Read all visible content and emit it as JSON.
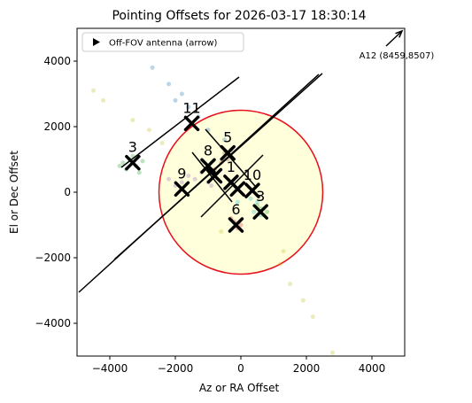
{
  "chart_data": {
    "type": "scatter",
    "title": "Pointing Offsets for 2026-03-17 18:30:14",
    "xlabel": "Az or RA Offset",
    "ylabel": "El or Dec Offset",
    "xlim": [
      -5000,
      5000
    ],
    "ylim": [
      -5000,
      5000
    ],
    "xticks": [
      {
        "value": -4000,
        "label": "−4000"
      },
      {
        "value": -2000,
        "label": "−2000"
      },
      0,
      2000,
      4000
    ],
    "yticks": [
      {
        "value": -4000,
        "label": "−4000"
      },
      {
        "value": -2000,
        "label": "−2000"
      },
      0,
      2000,
      4000
    ],
    "circle": {
      "x": 0,
      "y": 0,
      "r": 2500,
      "color": "#e8101a",
      "fill": "#ffffdc"
    },
    "series": [
      {
        "color": "#1f77b4",
        "x": [
          -2700,
          -2200,
          -1800,
          -1600,
          -1300,
          -2000,
          -1000,
          -500
        ],
        "y": [
          3800,
          3300,
          3000,
          2600,
          2300,
          2800,
          1900,
          1600
        ]
      },
      {
        "color": "#2ca02c",
        "x": [
          -3600,
          -3400,
          -3200,
          -3500,
          -3300,
          -3100,
          -3700,
          -3000,
          600,
          700,
          500,
          800
        ],
        "y": [
          900,
          1000,
          800,
          700,
          1100,
          600,
          800,
          950,
          -500,
          -700,
          -400,
          -600
        ]
      },
      {
        "color": "#9467bd",
        "x": [
          -1800,
          -1600,
          -2000,
          -1400,
          -1200,
          -1000,
          -2200,
          -900
        ],
        "y": [
          300,
          500,
          200,
          400,
          600,
          300,
          400,
          200
        ]
      },
      {
        "color": "#bcbd22",
        "x": [
          -4500,
          -4200,
          -3300,
          -2800,
          -2400,
          1200,
          1500,
          1900,
          2200,
          2800,
          -600,
          1300
        ],
        "y": [
          3100,
          2800,
          2200,
          1900,
          1500,
          -2200,
          -2800,
          -3300,
          -3800,
          -4900,
          -1200,
          -1800
        ]
      },
      {
        "color": "#d62728",
        "x": [
          -200,
          -100,
          -300,
          0,
          -800,
          -600
        ],
        "y": [
          -900,
          -1100,
          -800,
          -1000,
          700,
          900
        ]
      },
      {
        "color": "#17becf",
        "x": [
          500,
          700,
          300,
          600,
          400,
          -100
        ],
        "y": [
          -300,
          -500,
          -200,
          -700,
          -600,
          -300
        ]
      },
      {
        "color": "#8c564b",
        "x": [
          -500,
          -300,
          -400
        ],
        "y": [
          1200,
          1300,
          1000
        ]
      }
    ],
    "markers": {
      "color": "#000000",
      "x": [
        -1500,
        -400,
        -3300,
        -1000,
        -1800,
        -800,
        -300,
        -100,
        350,
        600,
        -150
      ],
      "y": [
        2100,
        1200,
        900,
        800,
        100,
        500,
        300,
        100,
        50,
        -600,
        -1000
      ],
      "labels": [
        "11",
        "5",
        "3",
        "8",
        "9",
        null,
        "1",
        null,
        "10",
        "3",
        "6"
      ]
    },
    "lines": [
      {
        "x": [
          -4946,
          2378
        ],
        "y": [
          -3054,
          3595
        ]
      },
      {
        "x": [
          -3865,
          2486
        ],
        "y": [
          -2054,
          3622
        ]
      },
      {
        "x": [
          -3649,
          -54
        ],
        "y": [
          757,
          3514
        ]
      },
      {
        "x": [
          -1081,
          432
        ],
        "y": [
          1919,
          189
        ]
      },
      {
        "x": [
          -1486,
          -270
        ],
        "y": [
          1216,
          -297
        ]
      },
      {
        "x": [
          -1216,
          676
        ],
        "y": [
          -757,
          1135
        ]
      }
    ],
    "arrow": {
      "label": "A12 (8459,8507)",
      "x": [
        4432,
        4919
      ],
      "y": [
        4459,
        4919
      ]
    },
    "legend": {
      "label": "Off-FOV antenna (arrow)",
      "loc": "upper left"
    }
  }
}
